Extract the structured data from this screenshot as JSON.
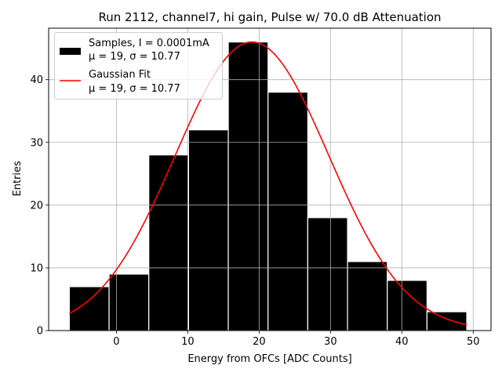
{
  "chart_data": {
    "type": "bar",
    "title": "Run 2112, channel7, hi gain, Pulse w/ 70.0 dB Attenuation",
    "xlabel": "Energy from OFCs [ADC Counts]",
    "ylabel": "Entries",
    "xlim": [
      -9.5,
      52.5
    ],
    "ylim": [
      0,
      48.2
    ],
    "xticks": [
      0,
      10,
      20,
      30,
      40,
      50
    ],
    "yticks": [
      0,
      10,
      20,
      30,
      40
    ],
    "grid": true,
    "legend_position": "top-left",
    "bin_edges": [
      -6.6,
      -1.03,
      4.54,
      10.11,
      15.68,
      21.25,
      26.82,
      32.39,
      37.96,
      43.53,
      49.1
    ],
    "bar_color": "#000000",
    "bar_edge_color": "#ffffff",
    "fit_color": "#ff0000",
    "fit_amplitude": 46,
    "series": [
      {
        "type": "histogram",
        "legend_line1": "Samples, I = 0.0001mA",
        "legend_line2": "μ = 19, σ = 10.77",
        "values": [
          7,
          9,
          28,
          32,
          46,
          38,
          18,
          11,
          8,
          3
        ]
      },
      {
        "type": "line",
        "legend_line1": "Gaussian Fit",
        "legend_line2": "μ = 19, σ = 10.77",
        "mu": 19,
        "sigma": 10.77
      }
    ]
  }
}
